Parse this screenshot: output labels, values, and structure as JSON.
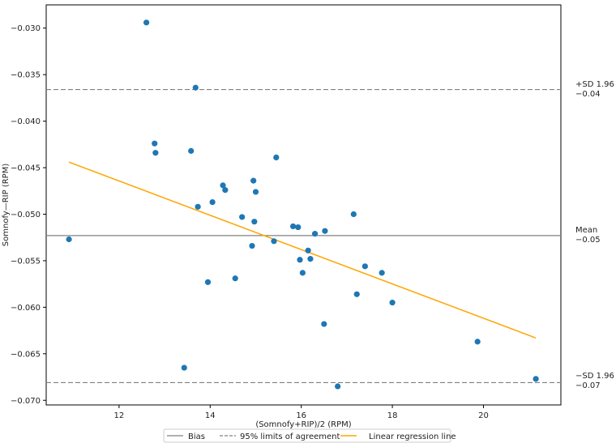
{
  "chart_data": {
    "type": "scatter",
    "title": "",
    "xlabel": "(Somnofy+RIP)/2 (RPM)",
    "ylabel": "Somnofy—RIP (RPM)",
    "xlim": [
      10.4,
      21.7
    ],
    "ylim": [
      -0.0705,
      -0.0275
    ],
    "xticks": [
      12,
      14,
      16,
      18,
      20
    ],
    "yticks": [
      -0.03,
      -0.035,
      -0.04,
      -0.045,
      -0.05,
      -0.055,
      -0.06,
      -0.065,
      -0.07
    ],
    "ytick_labels": [
      "−0.030",
      "−0.035",
      "−0.040",
      "−0.045",
      "−0.050",
      "−0.055",
      "−0.060",
      "−0.065",
      "−0.070"
    ],
    "points": [
      [
        10.9,
        -0.0527
      ],
      [
        12.6,
        -0.0294
      ],
      [
        12.78,
        -0.0424
      ],
      [
        12.8,
        -0.0434
      ],
      [
        13.43,
        -0.0665
      ],
      [
        13.58,
        -0.0432
      ],
      [
        13.68,
        -0.0364
      ],
      [
        13.73,
        -0.0492
      ],
      [
        13.95,
        -0.0573
      ],
      [
        14.05,
        -0.0487
      ],
      [
        14.28,
        -0.0469
      ],
      [
        14.33,
        -0.0474
      ],
      [
        14.55,
        -0.0569
      ],
      [
        14.7,
        -0.0503
      ],
      [
        14.92,
        -0.0534
      ],
      [
        14.95,
        -0.0464
      ],
      [
        14.97,
        -0.0508
      ],
      [
        15.0,
        -0.0476
      ],
      [
        15.4,
        -0.0529
      ],
      [
        15.45,
        -0.0439
      ],
      [
        15.82,
        -0.0513
      ],
      [
        15.93,
        -0.0514
      ],
      [
        15.97,
        -0.0549
      ],
      [
        16.03,
        -0.0563
      ],
      [
        16.15,
        -0.0539
      ],
      [
        16.2,
        -0.0548
      ],
      [
        16.3,
        -0.0521
      ],
      [
        16.5,
        -0.0618
      ],
      [
        16.52,
        -0.0518
      ],
      [
        16.8,
        -0.0685
      ],
      [
        17.15,
        -0.05
      ],
      [
        17.22,
        -0.0586
      ],
      [
        17.4,
        -0.0556
      ],
      [
        17.77,
        -0.0563
      ],
      [
        18.0,
        -0.0595
      ],
      [
        19.87,
        -0.0637
      ],
      [
        21.15,
        -0.0677
      ]
    ],
    "point_color": "#1f77b4",
    "bias": -0.0523,
    "upper_loa": -0.0366,
    "lower_loa": -0.0681,
    "regression": {
      "x": [
        10.9,
        21.15
      ],
      "y": [
        -0.0444,
        -0.0633
      ],
      "color": "#ffa500"
    },
    "line_labels": {
      "upper": [
        "+SD 1.96",
        "−0.04"
      ],
      "mean": [
        "Mean",
        "−0.05"
      ],
      "lower": [
        "−SD 1.96",
        "−0.07"
      ]
    },
    "legend": {
      "position": "bottom-center",
      "entries": [
        {
          "label": "Bias",
          "style": "solid",
          "color": "#808080"
        },
        {
          "label": "95% limits of agreement",
          "style": "dashed",
          "color": "#808080"
        },
        {
          "label": "Linear regression line",
          "style": "solid",
          "color": "#ffa500"
        }
      ]
    },
    "grid": false
  }
}
